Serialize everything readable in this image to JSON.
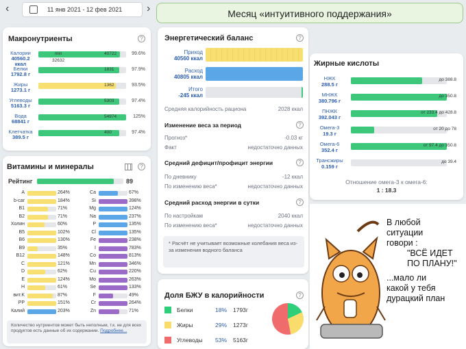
{
  "topbar": {
    "prev": "‹",
    "next": "›",
    "range": "11 янв 2021 - 12 фев 2021",
    "caret": "⌄"
  },
  "banner": "Месяц «интуитивного поддержания»",
  "macros": {
    "title": "Макронутриенты",
    "rows": [
      {
        "label": "Калории",
        "value": "40560.2",
        "unit": "ккал",
        "mark_left": "min",
        "mark_right": "40722",
        "extra": "32632",
        "pct": "99.6%",
        "fill": 0.93,
        "color": "#3cc77a"
      },
      {
        "label": "Белки",
        "value": "1792.8 г",
        "mark_right": "1831",
        "pct": "97.9%",
        "fill": 0.92,
        "color": "#3cc77a"
      },
      {
        "label": "Жиры",
        "value": "1273.1 г",
        "mark_right": "1362",
        "pct": "93.5%",
        "fill": 0.88,
        "color": "#f8df72"
      },
      {
        "label": "Углеводы",
        "value": "5163.3 г",
        "mark_right": "5303",
        "pct": "97.4%",
        "fill": 0.92,
        "color": "#3cc77a"
      },
      {
        "label": "Вода",
        "value": "68841 г",
        "mark_right": "54974",
        "pct": "125%",
        "fill": 1.0,
        "color": "#3cc77a"
      },
      {
        "label": "Клетчатка",
        "value": "389.5 г",
        "mark_right": "400",
        "pct": "97.4%",
        "fill": 0.92,
        "color": "#3cc77a"
      }
    ]
  },
  "vitamins": {
    "title": "Витамины и минералы",
    "rating_label": "Рейтинг",
    "rating_value": "89",
    "rating_fill": 0.89,
    "left": [
      {
        "k": "A",
        "v": "264%",
        "f": 1.0,
        "c": "#f8df72"
      },
      {
        "k": "b-car",
        "v": "184%",
        "f": 1.0,
        "c": "#f8df72"
      },
      {
        "k": "B1",
        "v": "71%",
        "f": 0.71,
        "c": "#f8df72"
      },
      {
        "k": "B2",
        "v": "71%",
        "f": 0.71,
        "c": "#f8df72"
      },
      {
        "k": "Холин",
        "v": "60%",
        "f": 0.6,
        "c": "#f8df72"
      },
      {
        "k": "B5",
        "v": "102%",
        "f": 1.0,
        "c": "#f8df72"
      },
      {
        "k": "B6",
        "v": "130%",
        "f": 1.0,
        "c": "#f8df72"
      },
      {
        "k": "B9",
        "v": "35%",
        "f": 0.35,
        "c": "#f8df72"
      },
      {
        "k": "B12",
        "v": "148%",
        "f": 1.0,
        "c": "#f8df72"
      },
      {
        "k": "C",
        "v": "121%",
        "f": 1.0,
        "c": "#f8df72"
      },
      {
        "k": "D",
        "v": "62%",
        "f": 0.62,
        "c": "#f8df72"
      },
      {
        "k": "E",
        "v": "124%",
        "f": 1.0,
        "c": "#f8df72"
      },
      {
        "k": "H",
        "v": "61%",
        "f": 0.61,
        "c": "#f8df72"
      },
      {
        "k": "вит.K",
        "v": "87%",
        "f": 0.87,
        "c": "#f8df72"
      },
      {
        "k": "PP",
        "v": "151%",
        "f": 1.0,
        "c": "#f8df72"
      },
      {
        "k": "Калий",
        "v": "203%",
        "f": 1.0,
        "c": "#5aa6e6"
      }
    ],
    "right": [
      {
        "k": "Ca",
        "v": "67%",
        "f": 0.67,
        "c": "#5aa6e6"
      },
      {
        "k": "Si",
        "v": "398%",
        "f": 1.0,
        "c": "#9b6bc7"
      },
      {
        "k": "Mg",
        "v": "124%",
        "f": 1.0,
        "c": "#5aa6e6"
      },
      {
        "k": "Na",
        "v": "237%",
        "f": 1.0,
        "c": "#5aa6e6"
      },
      {
        "k": "P",
        "v": "135%",
        "f": 1.0,
        "c": "#5aa6e6"
      },
      {
        "k": "Cl",
        "v": "135%",
        "f": 1.0,
        "c": "#5aa6e6"
      },
      {
        "k": "Fe",
        "v": "238%",
        "f": 1.0,
        "c": "#9b6bc7"
      },
      {
        "k": "I",
        "v": "783%",
        "f": 1.0,
        "c": "#9b6bc7"
      },
      {
        "k": "Co",
        "v": "813%",
        "f": 1.0,
        "c": "#9b6bc7"
      },
      {
        "k": "Mn",
        "v": "346%",
        "f": 1.0,
        "c": "#9b6bc7"
      },
      {
        "k": "Cu",
        "v": "220%",
        "f": 1.0,
        "c": "#9b6bc7"
      },
      {
        "k": "Mo",
        "v": "263%",
        "f": 1.0,
        "c": "#9b6bc7"
      },
      {
        "k": "Se",
        "v": "133%",
        "f": 1.0,
        "c": "#9b6bc7"
      },
      {
        "k": "F",
        "v": "49%",
        "f": 0.49,
        "c": "#9b6bc7"
      },
      {
        "k": "Cr",
        "v": "264%",
        "f": 1.0,
        "c": "#9b6bc7"
      },
      {
        "k": "Zn",
        "v": "71%",
        "f": 0.71,
        "c": "#9b6bc7"
      }
    ],
    "note": "Количество нутриентов может быть неполным, т.к. не для всех продуктов есть данные об их содержании.",
    "note_link": "Подробнее..."
  },
  "energy": {
    "title": "Энергетический баланс",
    "in_label": "Приход",
    "in_value": "40560 ккал",
    "out_label": "Расход",
    "out_value": "40805 ккал",
    "total_label": "Итого",
    "total_value": "-245 ккал",
    "avg_label": "Средняя калорийность рациона",
    "avg_value": "2028 ккал",
    "weight_title": "Изменение веса за период",
    "forecast_label": "Прогноз*",
    "forecast_value": "-0.03 кг",
    "fact_label": "Факт",
    "fact_value": "недостаточно данных",
    "deficit_title": "Средний дефицит/профицит энергии",
    "diary_label": "По дневнику",
    "diary_value": "-12 ккал",
    "byweight_label": "По изменению веса*",
    "byweight_value": "недостаточно данных",
    "spend_title": "Средний расход энергии в сутки",
    "settings_label": "По настройкам",
    "settings_value": "2040 ккал",
    "byweight2_label": "По изменению веса*",
    "byweight2_value": "недостаточно данных",
    "footnote": "* Расчёт не учитывает возможные колебания веса из-за изменения водного баланса"
  },
  "fats": {
    "title": "Жирные кислоты",
    "rows": [
      {
        "name": "НЖК",
        "value": "288.5 г",
        "mark": "до 388.8",
        "fill": 0.74
      },
      {
        "name": "МНЖК",
        "value": "380.796 г",
        "mark": "до 350.8",
        "fill": 1.0
      },
      {
        "name": "ПНЖК",
        "value": "392.043 г",
        "mark": "от 233.4 до 428.8",
        "fill": 0.9
      },
      {
        "name": "Омега-3",
        "value": "19.3 г",
        "mark": "от 20 до 78",
        "fill": 0.24
      },
      {
        "name": "Омега-6",
        "value": "352.4 г",
        "mark": "от 97.4 до 350.8",
        "fill": 1.0
      },
      {
        "name": "Трансжиры",
        "value": "0.159 г",
        "mark": "до 39.4",
        "fill": 0.0
      }
    ],
    "ratio_label": "Отношение омега-3 к омега-6:",
    "ratio_value": "1 : 18.3"
  },
  "bju": {
    "title": "Доля БЖУ в калорийности",
    "rows": [
      {
        "name": "Белки",
        "pct": "18%",
        "g": "1793г",
        "color": "#2fcf79"
      },
      {
        "name": "Жиры",
        "pct": "29%",
        "g": "1273г",
        "color": "#f9dc6c"
      },
      {
        "name": "Углеводы",
        "pct": "53%",
        "g": "5163г",
        "color": "#f06c6c"
      }
    ],
    "shares": [
      18,
      29,
      53
    ]
  },
  "meme": {
    "line1": "В любой",
    "line2": "ситуации",
    "line3": "говори :",
    "line4": "\"ВСЁ ИДЕТ",
    "line5": "ПО ПЛАНУ!\"",
    "line6": "...мало ли",
    "line7": "какой у тебя",
    "line8": "дурацкий план"
  },
  "colors": {
    "green": "#3cc77a",
    "yellow": "#f8df72",
    "blue": "#5aa6e6",
    "purple": "#9b6bc7",
    "red": "#f06c6c"
  }
}
